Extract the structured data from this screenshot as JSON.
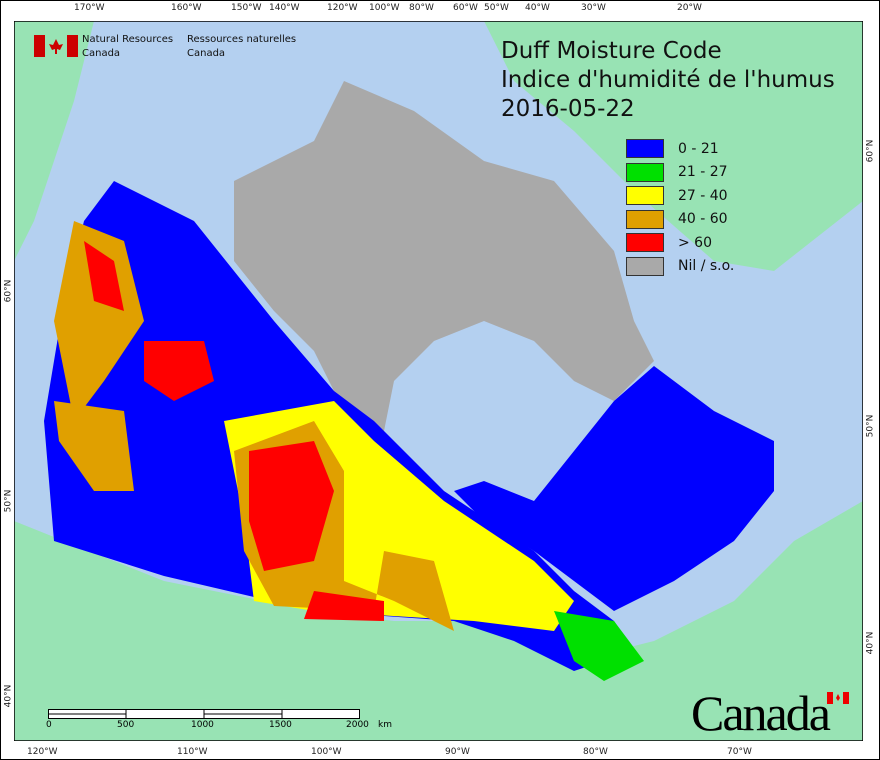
{
  "title": {
    "line1": "Duff Moisture Code",
    "line2": "Indice d'humidité de l'humus",
    "date": "2016-05-22"
  },
  "agency": {
    "en1": "Natural Resources",
    "en2": "Canada",
    "fr1": "Ressources naturelles",
    "fr2": "Canada"
  },
  "legend": [
    {
      "label": "0 - 21",
      "color": "#0000ff"
    },
    {
      "label": "21 - 27",
      "color": "#00e000"
    },
    {
      "label": "27 - 40",
      "color": "#ffff00"
    },
    {
      "label": "40 - 60",
      "color": "#e0a000"
    },
    {
      "label": "> 60",
      "color": "#ff0000"
    },
    {
      "label": "Nil / s.o.",
      "color": "#a9a9a9"
    }
  ],
  "top_ticks": [
    "170°W",
    "160°W",
    "150°W",
    "140°W",
    "120°W",
    "100°W",
    "80°W",
    "60°W",
    "50°W",
    "40°W",
    "30°W",
    "20°W"
  ],
  "bottom_ticks": [
    "120°W",
    "110°W",
    "100°W",
    "90°W",
    "80°W",
    "70°W"
  ],
  "left_ticks": [
    "60°N",
    "50°N",
    "40°N"
  ],
  "right_ticks": [
    "60°N",
    "50°N",
    "40°N"
  ],
  "scale": {
    "labels": [
      "0",
      "500",
      "1000",
      "1500",
      "2000"
    ],
    "unit": "km"
  },
  "wordmark": "Canada",
  "colors": {
    "ocean": "#b4d0f0",
    "land": "#98e3b4",
    "nodata": "#a9a9a9"
  }
}
